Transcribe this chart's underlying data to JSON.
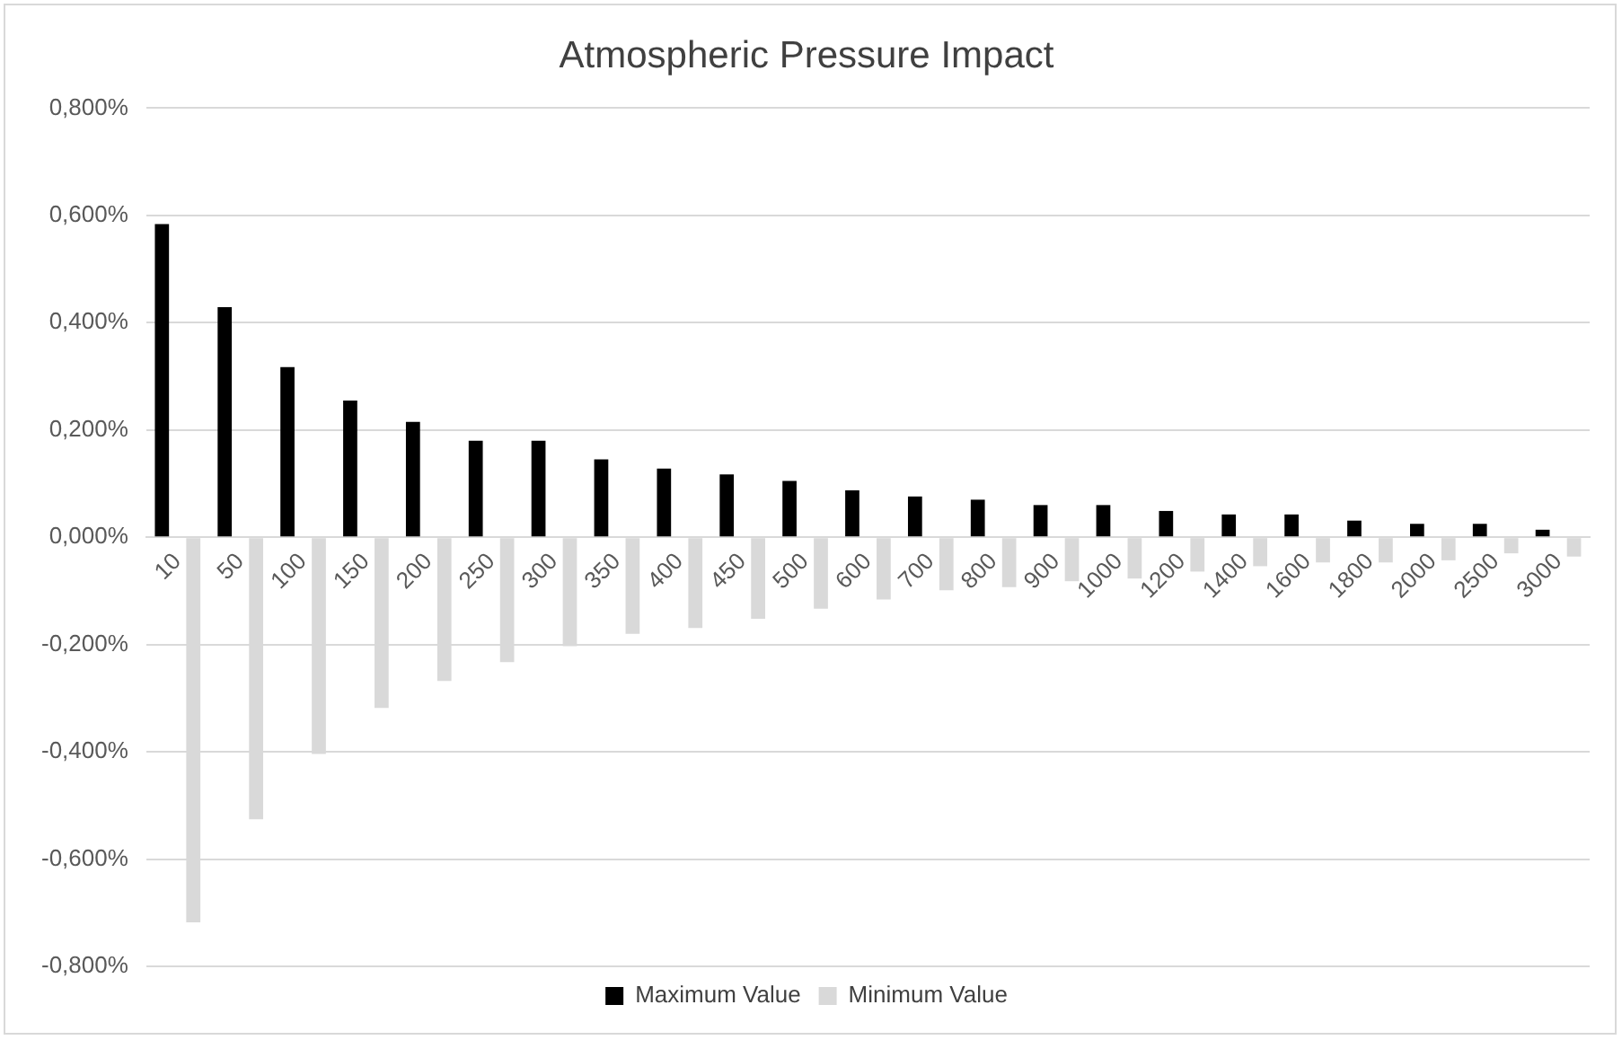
{
  "chart_data": {
    "type": "bar",
    "title": "Atmospheric Pressure Impact",
    "categories": [
      "10",
      "50",
      "100",
      "150",
      "200",
      "250",
      "300",
      "350",
      "400",
      "450",
      "500",
      "600",
      "700",
      "800",
      "900",
      "1000",
      "1200",
      "1400",
      "1600",
      "1800",
      "2000",
      "2500",
      "3000"
    ],
    "series": [
      {
        "name": "Maximum Value",
        "color": "#000000",
        "values": [
          0.584,
          0.429,
          0.317,
          0.255,
          0.215,
          0.18,
          0.18,
          0.145,
          0.128,
          0.117,
          0.105,
          0.0875,
          0.076,
          0.07,
          0.06,
          0.06,
          0.049,
          0.0425,
          0.0425,
          0.031,
          0.025,
          0.025,
          0.014
        ]
      },
      {
        "name": "Minimum Value",
        "color": "#d9d9d9",
        "values": [
          -0.718,
          -0.526,
          -0.404,
          -0.318,
          -0.268,
          -0.233,
          -0.203,
          -0.18,
          -0.169,
          -0.152,
          -0.133,
          -0.116,
          -0.099,
          -0.093,
          -0.082,
          -0.077,
          -0.064,
          -0.054,
          -0.047,
          -0.047,
          -0.043,
          -0.03,
          -0.036
        ]
      }
    ],
    "ylim": [
      -0.8,
      0.8
    ],
    "yticks": [
      {
        "value": -0.8,
        "label": "-0,800%"
      },
      {
        "value": -0.6,
        "label": "-0,600%"
      },
      {
        "value": -0.4,
        "label": "-0,400%"
      },
      {
        "value": -0.2,
        "label": "-0,200%"
      },
      {
        "value": 0,
        "label": "0,000%"
      },
      {
        "value": 0.2,
        "label": "0,200%"
      },
      {
        "value": 0.4,
        "label": "0,400%"
      },
      {
        "value": 0.6,
        "label": "0,600%"
      },
      {
        "value": 0.8,
        "label": "0,800%"
      }
    ],
    "grid": "y",
    "legend": "bottom"
  }
}
